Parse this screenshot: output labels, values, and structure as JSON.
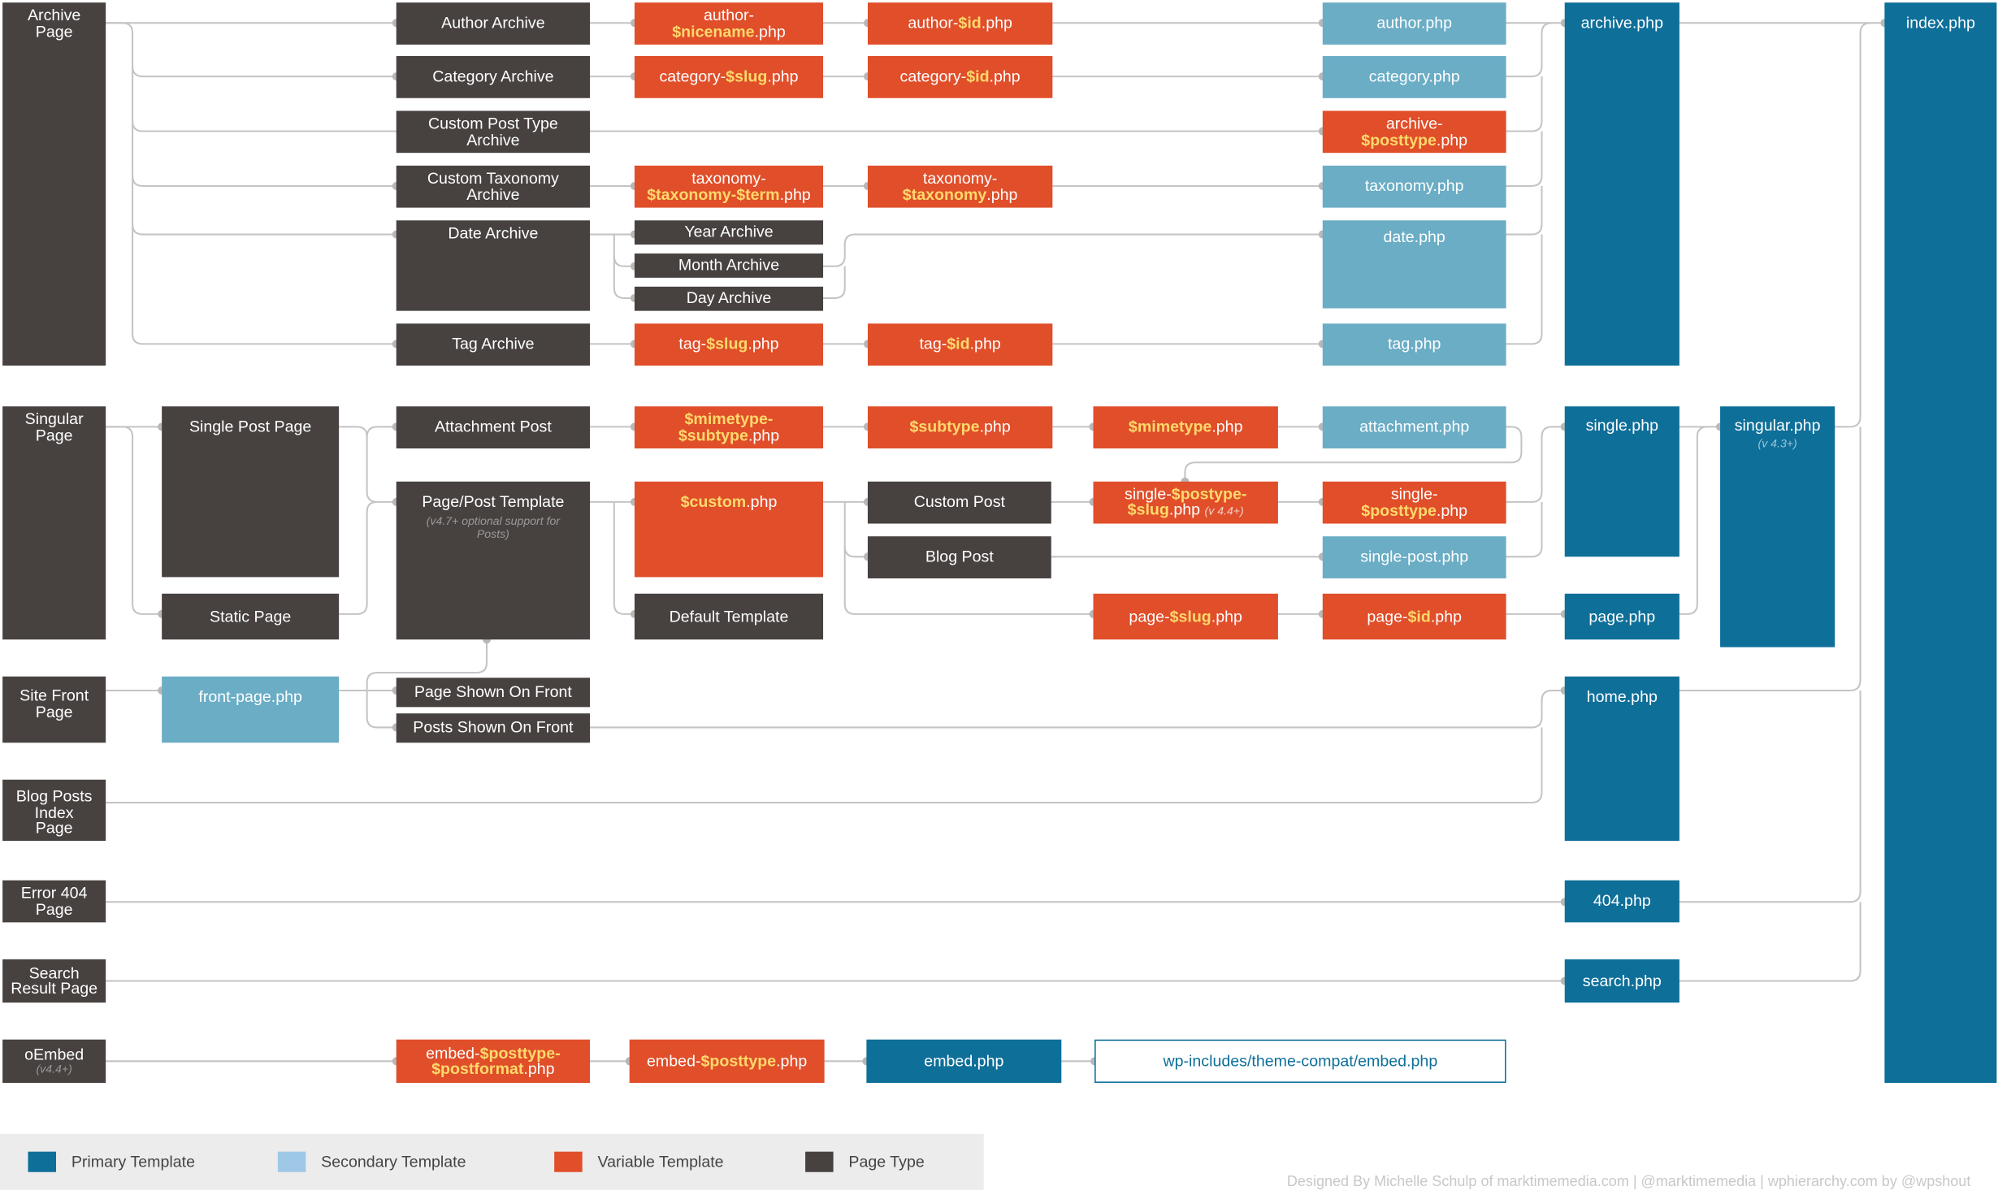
{
  "page_types": {
    "archive": "Archive Page",
    "singular": "Singular Page",
    "front": "Site Front Page",
    "blog_index": "Blog Posts Index Page",
    "e404": "Error 404 Page",
    "search": "Search Result Page",
    "oembed": "oEmbed",
    "oembed_ver": "(v4.4+)"
  },
  "archive_types": {
    "author": "Author Archive",
    "category": "Category Archive",
    "cpt": "Custom Post Type Archive",
    "taxonomy": "Custom Taxonomy Archive",
    "date": "Date Archive",
    "year": "Year Archive",
    "month": "Month Archive",
    "day": "Day Archive",
    "tag": "Tag Archive"
  },
  "singular_types": {
    "single_post": "Single Post Page",
    "static_page": "Static Page",
    "attachment": "Attachment Post",
    "page_post_template": "Page/Post Template",
    "template_note": "(v4.7+ optional support for Posts)",
    "default_template": "Default Template",
    "custom_post": "Custom Post",
    "blog_post": "Blog Post",
    "page_on_front": "Page Shown On Front",
    "posts_on_front": "Posts Shown On Front"
  },
  "variable_templates": {
    "author_nicename": [
      "author-",
      "$nicename",
      ".php"
    ],
    "author_id": [
      "author-",
      "$id",
      ".php"
    ],
    "category_slug": [
      "category-",
      "$slug",
      ".php"
    ],
    "category_id": [
      "category-",
      "$id",
      ".php"
    ],
    "archive_posttype": [
      "archive-",
      "$posttype",
      ".php"
    ],
    "taxonomy_term": [
      "taxonomy-",
      "$taxonomy-$term",
      ".php"
    ],
    "taxonomy_tax": [
      "taxonomy-",
      "$taxonomy",
      ".php"
    ],
    "tag_slug": [
      "tag-",
      "$slug",
      ".php"
    ],
    "tag_id": [
      "tag-",
      "$id",
      ".php"
    ],
    "mimetype_subtype": [
      "$mimetype-",
      "$subtype",
      ".php"
    ],
    "subtype": [
      "$subtype",
      ".php"
    ],
    "mimetype": [
      "$mimetype",
      ".php"
    ],
    "custom": [
      "$custom",
      ".php"
    ],
    "single_posttype_slug": [
      "single-",
      "$postype-",
      "$slug",
      ".php",
      "(v 4.4+)"
    ],
    "single_posttype": [
      "single-",
      "$posttype",
      ".php"
    ],
    "page_slug": [
      "page-",
      "$slug",
      ".php"
    ],
    "page_id": [
      "page-",
      "$id",
      ".php"
    ],
    "embed_posttype_postformat": [
      "embed-",
      "$posttype-",
      "$postformat",
      ".php"
    ],
    "embed_posttype": [
      "embed-",
      "$posttype",
      ".php"
    ]
  },
  "secondary_templates": {
    "author": "author.php",
    "category": "category.php",
    "taxonomy": "taxonomy.php",
    "date": "date.php",
    "tag": "tag.php",
    "attachment": "attachment.php",
    "single_post": "single-post.php",
    "front_page": "front-page.php"
  },
  "primary_templates": {
    "archive": "archive.php",
    "single": "single.php",
    "singular": "singular.php",
    "singular_ver": "(v 4.3+)",
    "page": "page.php",
    "home": "home.php",
    "e404": "404.php",
    "search": "search.php",
    "embed": "embed.php",
    "index": "index.php"
  },
  "theme_compat_embed": "wp-includes/theme-compat/embed.php",
  "legend": [
    {
      "label": "Primary Template",
      "color": "#0e6f99"
    },
    {
      "label": "Secondary Template",
      "color": "#9fc8e6"
    },
    {
      "label": "Variable Template",
      "color": "#e04e2a"
    },
    {
      "label": "Page Type",
      "color": "#474140"
    }
  ],
  "credits": "Designed By Michelle Schulp of marktimemedia.com  |  @marktimemedia  |  wphierarchy.com by @wpshout"
}
